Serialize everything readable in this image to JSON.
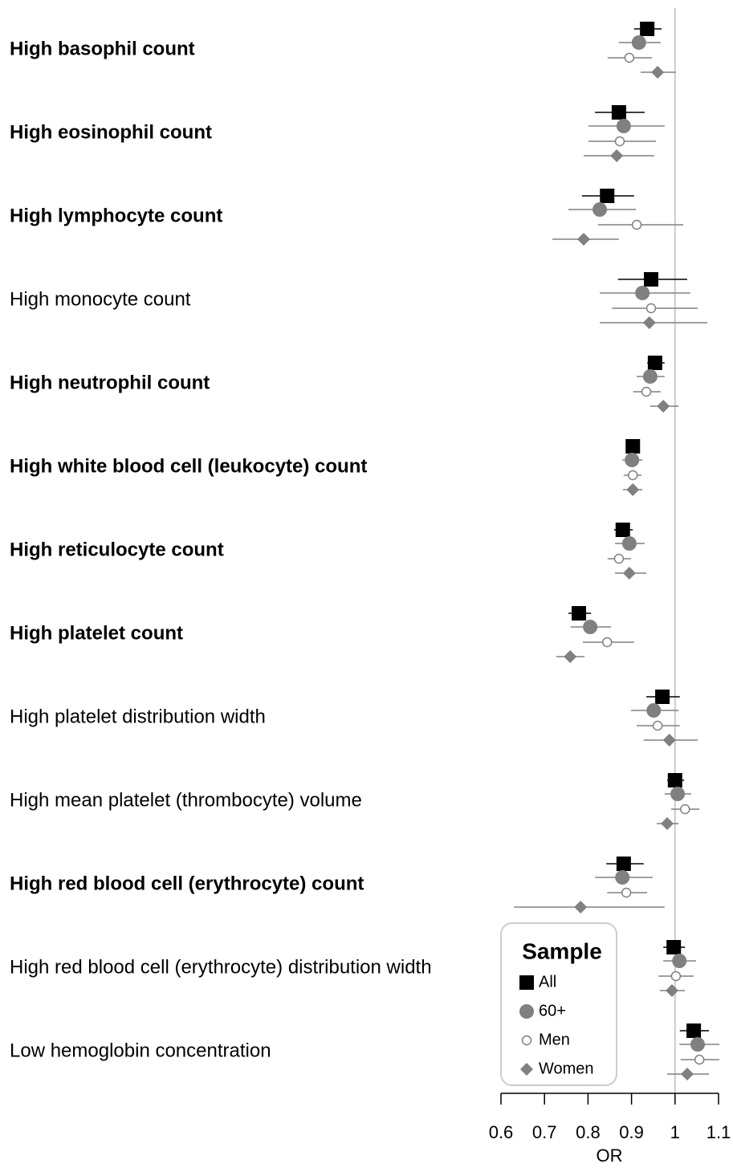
{
  "chart_data": {
    "type": "forest",
    "xlabel": "OR",
    "legend_title": "Sample",
    "legend": "bottom-left",
    "xlim": [
      0.6,
      1.1
    ],
    "xticks": [
      0.6,
      0.7,
      0.8,
      0.9,
      1,
      1.1
    ],
    "vline": 1,
    "categories": [
      "High basophil count",
      "High eosinophil count",
      "High lymphocyte count",
      "High monocyte count",
      "High neutrophil count",
      "High white blood cell (leukocyte) count",
      "High reticulocyte count",
      "High platelet count",
      "High platelet distribution width",
      "High mean platelet (thrombocyte) volume",
      "High red blood cell (erythrocyte) count",
      "High red blood cell (erythrocyte) distribution width",
      "Low hemoglobin concentration"
    ],
    "category_bold": [
      true,
      true,
      true,
      false,
      true,
      true,
      true,
      true,
      false,
      false,
      true,
      false,
      false
    ],
    "series": [
      {
        "name": "All",
        "color": "#000000",
        "marker": "square",
        "values": [
          0.936,
          0.871,
          0.844,
          0.945,
          0.954,
          0.903,
          0.88,
          0.779,
          0.971,
          1.0,
          0.882,
          0.997,
          1.043
        ],
        "lower": [
          0.906,
          0.816,
          0.786,
          0.869,
          0.936,
          0.887,
          0.86,
          0.755,
          0.934,
          0.982,
          0.842,
          0.973,
          1.011
        ],
        "upper": [
          0.969,
          0.93,
          0.906,
          1.028,
          0.976,
          0.919,
          0.903,
          0.807,
          1.011,
          1.021,
          0.928,
          1.023,
          1.078
        ]
      },
      {
        "name": "60+",
        "color": "#808080",
        "marker": "circle",
        "values": [
          0.917,
          0.882,
          0.827,
          0.925,
          0.943,
          0.901,
          0.895,
          0.805,
          0.951,
          1.006,
          0.879,
          1.01,
          1.052
        ],
        "lower": [
          0.871,
          0.801,
          0.755,
          0.827,
          0.912,
          0.879,
          0.862,
          0.76,
          0.899,
          0.976,
          0.816,
          0.973,
          1.01
        ],
        "upper": [
          0.967,
          0.976,
          0.91,
          1.035,
          0.976,
          0.925,
          0.93,
          0.853,
          1.008,
          1.037,
          0.949,
          1.048,
          1.102
        ]
      },
      {
        "name": "Men",
        "color": "#808080",
        "marker": "open-circle",
        "values": [
          0.895,
          0.873,
          0.912,
          0.945,
          0.934,
          0.903,
          0.871,
          0.844,
          0.96,
          1.023,
          0.888,
          1.002,
          1.056
        ],
        "lower": [
          0.845,
          0.801,
          0.823,
          0.855,
          0.904,
          0.882,
          0.845,
          0.788,
          0.912,
          0.991,
          0.844,
          0.962,
          1.013
        ],
        "upper": [
          0.947,
          0.956,
          1.019,
          1.052,
          0.967,
          0.923,
          0.899,
          0.906,
          1.011,
          1.056,
          0.936,
          1.043,
          1.102
        ]
      },
      {
        "name": "Women",
        "color": "#808080",
        "marker": "diamond",
        "values": [
          0.96,
          0.866,
          0.79,
          0.941,
          0.973,
          0.903,
          0.895,
          0.759,
          0.987,
          0.982,
          0.783,
          0.993,
          1.028
        ],
        "lower": [
          0.921,
          0.79,
          0.718,
          0.827,
          0.943,
          0.88,
          0.862,
          0.727,
          0.928,
          0.958,
          0.63,
          0.965,
          0.982
        ],
        "upper": [
          1.002,
          0.952,
          0.871,
          1.074,
          1.008,
          0.925,
          0.934,
          0.792,
          1.052,
          1.008,
          0.976,
          1.023,
          1.078
        ]
      }
    ]
  }
}
